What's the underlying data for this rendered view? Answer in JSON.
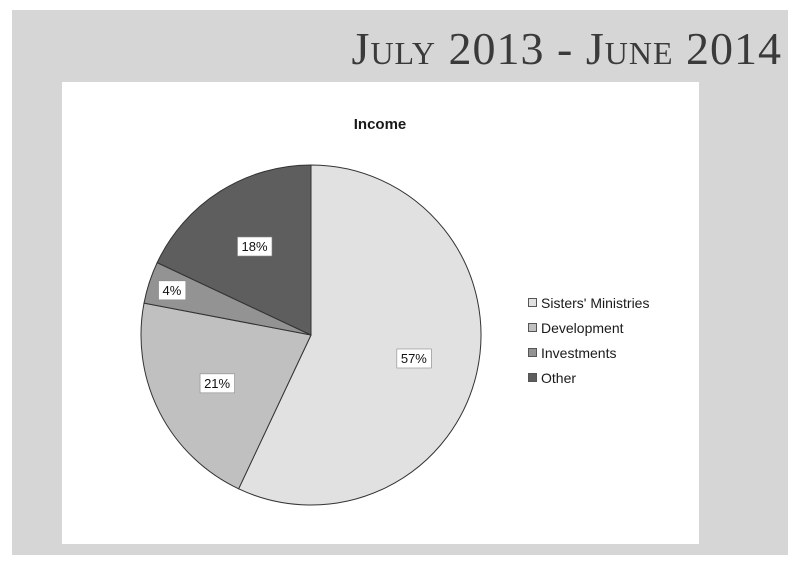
{
  "heading": "July 2013 - June 2014",
  "chart_data": {
    "type": "pie",
    "title": "Income",
    "categories": [
      "Sisters' Ministries",
      "Development",
      "Investments",
      "Other"
    ],
    "values": [
      57,
      21,
      4,
      18
    ],
    "labels": [
      "57%",
      "21%",
      "4%",
      "18%"
    ],
    "colors": [
      "#e1e1e1",
      "#c0c0c0",
      "#939393",
      "#5e5e5e"
    ],
    "start_angle_deg": 0,
    "direction": "clockwise",
    "legend_position": "right"
  }
}
